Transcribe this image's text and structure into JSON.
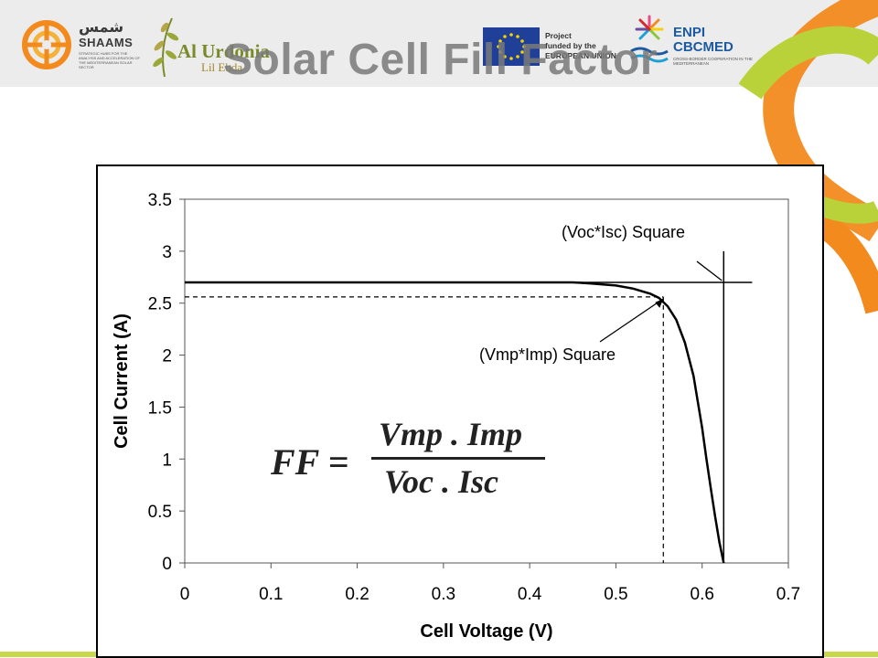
{
  "header": {
    "title": "Solar Cell Fill Factor",
    "logos": {
      "shaams_arabic": "شمس",
      "shaams_latin": "SHAAMS",
      "shaams_tagline": "STRATEGIC HUBS FOR THE ANALYSIS AND ACCELERATION OF THE MEDITERRANEAN SOLAR SECTOR",
      "alurdonia_name": "Al Urdonia",
      "alurdonia_sub": "Lil Ebda",
      "eu_text_1": "Project",
      "eu_text_2": "funded by the",
      "eu_text_3": "EUROPEAN UNION",
      "enpi_line1": "ENPI",
      "enpi_line2": "CBCMED",
      "enpi_tagline": "CROSS-BORDER COOPERATION IN THE MEDITERRANEAN"
    }
  },
  "formula": {
    "lhs": "FF =",
    "numerator": "Vmp . Imp",
    "denominator": "Voc . Isc"
  },
  "colors": {
    "banner_bg": "#ececec",
    "title": "#7a7a7a",
    "deco_orange": "#f28a1e",
    "deco_green": "#b9d23a",
    "bottom_line": "#c9d84a"
  },
  "chart_data": {
    "type": "line",
    "xlabel": "Cell Voltage (V)",
    "ylabel": "Cell Current (A)",
    "xlim": [
      0,
      0.7
    ],
    "ylim": [
      0,
      3.5
    ],
    "x_ticks": [
      "0",
      "0.1",
      "0.2",
      "0.3",
      "0.4",
      "0.5",
      "0.6",
      "0.7"
    ],
    "y_ticks": [
      "0",
      "0.5",
      "1",
      "1.5",
      "2",
      "2.5",
      "3",
      "3.5"
    ],
    "grid": false,
    "series": [
      {
        "x": [
          0,
          0.45,
          0.47,
          0.5,
          0.52,
          0.54,
          0.55,
          0.56,
          0.57,
          0.58,
          0.59,
          0.6,
          0.605,
          0.61,
          0.615,
          0.62,
          0.625
        ],
        "y": [
          2.7,
          2.7,
          2.69,
          2.67,
          2.64,
          2.59,
          2.55,
          2.47,
          2.34,
          2.12,
          1.8,
          1.3,
          1.0,
          0.72,
          0.45,
          0.2,
          0.0
        ]
      }
    ],
    "voc": 0.625,
    "isc": 2.7,
    "vmp": 0.555,
    "imp": 2.56,
    "annotations": [
      {
        "text": "(Voc*Isc) Square",
        "x": 0.625,
        "y": 2.7
      },
      {
        "text": "(Vmp*Imp) Square",
        "x": 0.555,
        "y": 2.56
      }
    ]
  }
}
